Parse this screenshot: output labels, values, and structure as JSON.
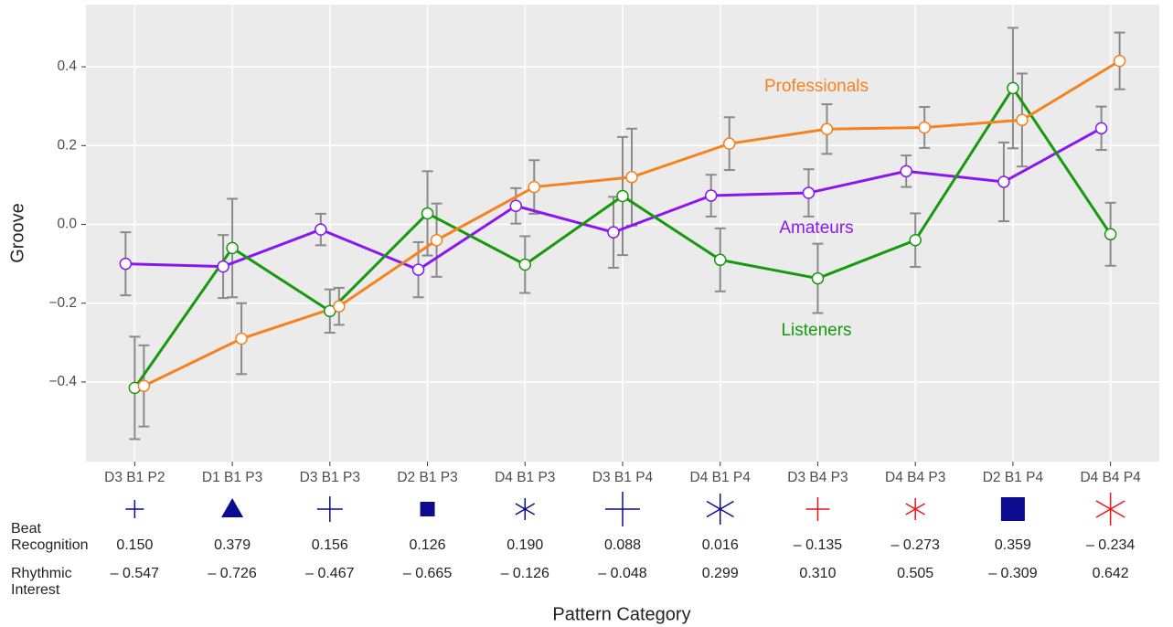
{
  "chart_data": {
    "type": "line",
    "x_label": "Pattern Category",
    "y_label": "Groove",
    "categories": [
      "D3 B1 P2",
      "D1 B1 P3",
      "D3 B1 P3",
      "D2 B1 P3",
      "D4 B1 P3",
      "D3 B1 P4",
      "D4 B1 P4",
      "D3 B4 P3",
      "D4 B4 P3",
      "D2 B1 P4",
      "D4 B4 P4"
    ],
    "series": [
      {
        "name": "Amateurs",
        "color": "#8a17f0",
        "values": [
          -0.1,
          -0.107,
          -0.013,
          -0.115,
          0.047,
          -0.02,
          0.073,
          0.08,
          0.135,
          0.108,
          0.244
        ],
        "errors": [
          0.08,
          0.08,
          0.04,
          0.07,
          0.045,
          0.09,
          0.053,
          0.06,
          0.04,
          0.1,
          0.055
        ]
      },
      {
        "name": "Listeners",
        "color": "#17990f",
        "values": [
          -0.415,
          -0.06,
          -0.22,
          0.028,
          -0.102,
          0.072,
          -0.09,
          -0.137,
          -0.04,
          0.346,
          -0.025
        ],
        "errors": [
          0.13,
          0.125,
          0.055,
          0.107,
          0.072,
          0.15,
          0.08,
          0.088,
          0.068,
          0.153,
          0.08
        ]
      },
      {
        "name": "Professionals",
        "color": "#f5821e",
        "values": [
          -0.41,
          -0.29,
          -0.208,
          -0.04,
          0.095,
          0.12,
          0.205,
          0.242,
          0.246,
          0.265,
          0.415
        ],
        "errors": [
          0.103,
          0.09,
          0.047,
          0.093,
          0.068,
          0.123,
          0.067,
          0.063,
          0.052,
          0.118,
          0.072
        ]
      }
    ],
    "ylim": [
      -0.602,
      0.558
    ],
    "yticks": [
      {
        "value": -0.4,
        "label": "−0.4"
      },
      {
        "value": -0.2,
        "label": "−0.2"
      },
      {
        "value": 0,
        "label": "0.0"
      },
      0.2,
      0.4
    ],
    "grid": true,
    "table": {
      "rows": [
        {
          "label": [
            "Beat",
            "Recognition"
          ],
          "values": [
            "0.150",
            "0.379",
            "0.156",
            "0.126",
            "0.190",
            "0.088",
            "0.016",
            "– 0.135",
            "– 0.273",
            "0.359",
            "– 0.234"
          ]
        },
        {
          "label": [
            "Rhythmic",
            "Interest"
          ],
          "values": [
            "– 0.547",
            "– 0.726",
            "– 0.467",
            "– 0.665",
            "– 0.126",
            "– 0.048",
            "0.299",
            "0.310",
            "0.505",
            "– 0.309",
            "0.642"
          ]
        }
      ]
    }
  }
}
